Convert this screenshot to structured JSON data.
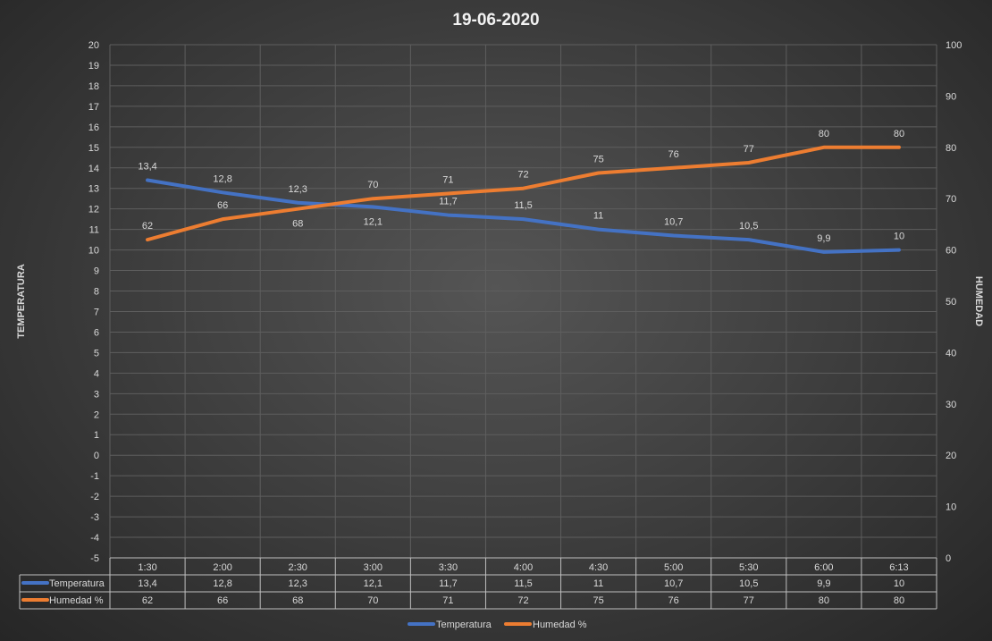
{
  "chart_data": {
    "type": "line",
    "title": "19-06-2020",
    "ylabel": "TEMPERATURA",
    "y2label": "HUMEDAD",
    "ylim": [
      -5,
      20
    ],
    "y2lim": [
      0,
      100
    ],
    "yticks": [
      -5,
      -4,
      -3,
      -2,
      -1,
      0,
      1,
      2,
      3,
      4,
      5,
      6,
      7,
      8,
      9,
      10,
      11,
      12,
      13,
      14,
      15,
      16,
      17,
      18,
      19,
      20
    ],
    "y2ticks": [
      0,
      10,
      20,
      30,
      40,
      50,
      60,
      70,
      80,
      90,
      100
    ],
    "categories": [
      "1:30",
      "2:00",
      "2:30",
      "3:00",
      "3:30",
      "4:00",
      "4:30",
      "5:00",
      "5:30",
      "6:00",
      "6:13"
    ],
    "series": [
      {
        "name": "Temperatura",
        "axis": "left",
        "color": "#4472c4",
        "values": [
          13.4,
          12.8,
          12.3,
          12.1,
          11.7,
          11.5,
          11,
          10.7,
          10.5,
          9.9,
          10
        ],
        "labels": [
          "13,4",
          "12,8",
          "12,3",
          "12,1",
          "11,7",
          "11,5",
          "11",
          "10,7",
          "10,5",
          "9,9",
          "10"
        ]
      },
      {
        "name": "Humedad %",
        "axis": "right",
        "color": "#ed7d31",
        "values": [
          62,
          66,
          68,
          70,
          71,
          72,
          75,
          76,
          77,
          80,
          80
        ],
        "labels": [
          "62",
          "66",
          "68",
          "70",
          "71",
          "72",
          "75",
          "76",
          "77",
          "80",
          "80"
        ]
      }
    ],
    "grid": true,
    "data_table": true,
    "legend": "bottom"
  }
}
